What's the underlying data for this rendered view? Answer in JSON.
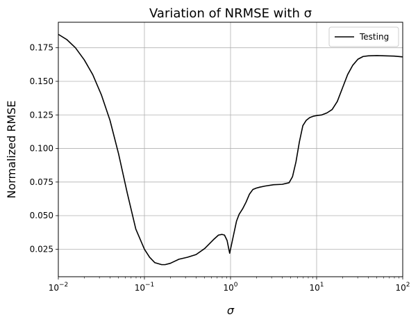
{
  "chart_data": {
    "type": "line",
    "title": "Variation of NRMSE with σ",
    "xlabel": "σ",
    "ylabel": "Normalized RMSE",
    "xscale": "log",
    "xlim": [
      0.01,
      100
    ],
    "ylim": [
      0.0045,
      0.194
    ],
    "grid": true,
    "legend": {
      "position": "top-right",
      "entries": [
        "Testing"
      ]
    },
    "x_ticks": [
      {
        "value": 0.01,
        "base": "10",
        "exp": "−2"
      },
      {
        "value": 0.1,
        "base": "10",
        "exp": "−1"
      },
      {
        "value": 1,
        "base": "10",
        "exp": "0"
      },
      {
        "value": 10,
        "base": "10",
        "exp": "1"
      },
      {
        "value": 100,
        "base": "10",
        "exp": "2"
      }
    ],
    "y_ticks": [
      {
        "value": 0.025,
        "label": "0.025"
      },
      {
        "value": 0.05,
        "label": "0.050"
      },
      {
        "value": 0.075,
        "label": "0.075"
      },
      {
        "value": 0.1,
        "label": "0.100"
      },
      {
        "value": 0.125,
        "label": "0.125"
      },
      {
        "value": 0.15,
        "label": "0.150"
      },
      {
        "value": 0.175,
        "label": "0.175"
      }
    ],
    "series": [
      {
        "name": "Testing",
        "color": "#000000",
        "x": [
          0.01,
          0.0126,
          0.0158,
          0.02,
          0.0251,
          0.0316,
          0.0398,
          0.0501,
          0.0631,
          0.0794,
          0.1,
          0.1148,
          0.1318,
          0.1585,
          0.1738,
          0.2,
          0.2512,
          0.3162,
          0.3981,
          0.5012,
          0.631,
          0.7244,
          0.7943,
          0.8511,
          0.912,
          0.977,
          1.0233,
          1.0715,
          1.1749,
          1.2589,
          1.3804,
          1.5136,
          1.6596,
          1.8197,
          1.9953,
          2.1878,
          2.5119,
          3.1623,
          3.9811,
          4.7863,
          5.2481,
          5.7544,
          6.3096,
          6.9183,
          7.5858,
          8.3176,
          9.1201,
          10.0,
          11.4815,
          13.1826,
          15.1356,
          17.378,
          19.9526,
          22.9087,
          26.3027,
          30.1995,
          34.6737,
          39.8107,
          50.1187,
          63.0957,
          79.4328,
          100.0
        ],
        "y": [
          0.185,
          0.181,
          0.175,
          0.166,
          0.155,
          0.14,
          0.121,
          0.096,
          0.067,
          0.04,
          0.025,
          0.019,
          0.015,
          0.0135,
          0.0135,
          0.0145,
          0.0175,
          0.019,
          0.021,
          0.0255,
          0.032,
          0.0355,
          0.036,
          0.0355,
          0.0315,
          0.022,
          0.028,
          0.034,
          0.046,
          0.051,
          0.055,
          0.06,
          0.066,
          0.0695,
          0.0705,
          0.0712,
          0.072,
          0.073,
          0.0733,
          0.0745,
          0.079,
          0.09,
          0.105,
          0.117,
          0.121,
          0.123,
          0.124,
          0.1245,
          0.125,
          0.1265,
          0.129,
          0.135,
          0.145,
          0.155,
          0.162,
          0.1665,
          0.1685,
          0.169,
          0.1692,
          0.169,
          0.1688,
          0.1682
        ]
      }
    ]
  }
}
